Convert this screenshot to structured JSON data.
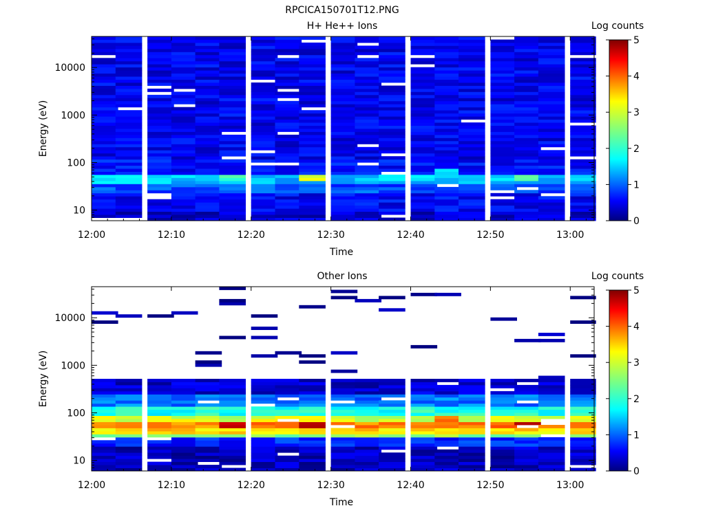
{
  "page": {
    "title": "RPCICA150701T12.PNG"
  },
  "panels": [
    {
      "title": "H+ He++ Ions",
      "ylabel": "Energy (eV)",
      "xlabel": "Time",
      "colorbar_label": "Log counts"
    },
    {
      "title": "Other Ions",
      "ylabel": "Energy (eV)",
      "xlabel": "Time",
      "colorbar_label": "Log counts"
    }
  ],
  "chart_data": [
    {
      "type": "heatmap",
      "title": "H+ He++ Ions",
      "xlabel": "Time",
      "ylabel": "Energy (eV)",
      "xticks": [
        "12:00",
        "12:10",
        "12:20",
        "12:30",
        "12:40",
        "12:50",
        "13:00"
      ],
      "yticks": [
        "10",
        "100",
        "1000",
        "10000"
      ],
      "xlim": [
        "12:00",
        "13:03"
      ],
      "ylim": [
        6,
        45000
      ],
      "yscale": "log",
      "colorbar": {
        "label": "Log counts",
        "ticks": [
          "0",
          "1",
          "2",
          "3",
          "4",
          "5"
        ],
        "range": [
          0,
          5
        ],
        "colormap": "jet"
      },
      "time_bins": [
        "12:00",
        "12:03",
        "12:07",
        "12:10",
        "12:13",
        "12:16",
        "12:20",
        "12:23",
        "12:26",
        "12:30",
        "12:33",
        "12:36",
        "12:40",
        "12:43",
        "12:46",
        "12:50",
        "12:53",
        "12:56",
        "13:00"
      ],
      "energy_profile": {
        "bands": [
          {
            "emin": 6,
            "emax": 10,
            "value": 0.4
          },
          {
            "emin": 10,
            "emax": 22,
            "value": 0.6
          },
          {
            "emin": 22,
            "emax": 35,
            "value": 1.0
          },
          {
            "emin": 35,
            "emax": 60,
            "value": 1.6
          },
          {
            "emin": 60,
            "emax": 120,
            "value": 0.7
          },
          {
            "emin": 120,
            "emax": 45000,
            "value": 0.55
          }
        ]
      },
      "highlights": [
        {
          "time": "12:16",
          "emin": 42,
          "emax": 58,
          "value": 2.2
        },
        {
          "time": "12:26",
          "emin": 42,
          "emax": 58,
          "value": 3.0
        },
        {
          "time": "12:43",
          "emin": 45,
          "emax": 70,
          "value": 1.7
        },
        {
          "time": "12:53",
          "emin": 42,
          "emax": 58,
          "value": 2.3
        }
      ]
    },
    {
      "type": "heatmap",
      "title": "Other Ions",
      "xlabel": "Time",
      "ylabel": "Energy (eV)",
      "xticks": [
        "12:00",
        "12:10",
        "12:20",
        "12:30",
        "12:40",
        "12:50",
        "13:00"
      ],
      "yticks": [
        "10",
        "100",
        "1000",
        "10000"
      ],
      "xlim": [
        "12:00",
        "13:03"
      ],
      "ylim": [
        6,
        45000
      ],
      "yscale": "log",
      "colorbar": {
        "label": "Log counts",
        "ticks": [
          "0",
          "1",
          "2",
          "3",
          "4",
          "5"
        ],
        "range": [
          0,
          5
        ],
        "colormap": "jet"
      },
      "time_bins": [
        "12:00",
        "12:03",
        "12:07",
        "12:10",
        "12:13",
        "12:16",
        "12:20",
        "12:23",
        "12:26",
        "12:30",
        "12:33",
        "12:36",
        "12:40",
        "12:43",
        "12:46",
        "12:50",
        "12:53",
        "12:56",
        "13:00"
      ],
      "energy_profile": {
        "bands": [
          {
            "emin": 6,
            "emax": 20,
            "value": 0.3
          },
          {
            "emin": 20,
            "emax": 30,
            "value": 0.8
          },
          {
            "emin": 30,
            "emax": 38,
            "value": 2.6
          },
          {
            "emin": 38,
            "emax": 48,
            "value": 3.3
          },
          {
            "emin": 48,
            "emax": 62,
            "value": 3.8
          },
          {
            "emin": 62,
            "emax": 90,
            "value": 2.9
          },
          {
            "emin": 90,
            "emax": 140,
            "value": 2.0
          },
          {
            "emin": 140,
            "emax": 250,
            "value": 1.2
          },
          {
            "emin": 250,
            "emax": 500,
            "value": 0.4
          }
        ]
      },
      "sparse_lines_above_eV": 500,
      "highlights": [
        {
          "time": "12:16",
          "emin": 48,
          "emax": 62,
          "value": 4.6
        },
        {
          "time": "12:26",
          "emin": 48,
          "emax": 62,
          "value": 4.8
        },
        {
          "time": "12:43",
          "emin": 48,
          "emax": 90,
          "value": 3.8
        },
        {
          "time": "12:53",
          "emin": 48,
          "emax": 62,
          "value": 4.6
        }
      ]
    }
  ]
}
